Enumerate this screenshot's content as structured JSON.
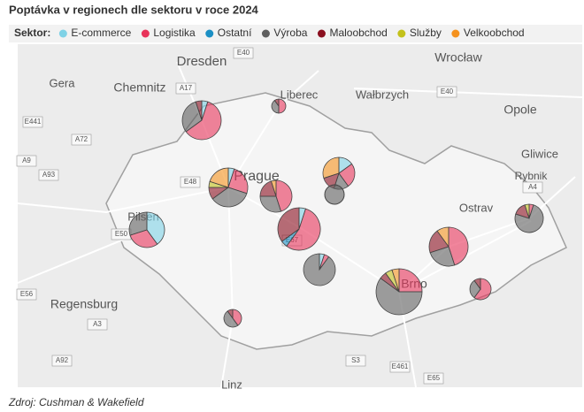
{
  "title": "Poptávka v regionech dle sektoru v roce 2024",
  "legend": {
    "label": "Sektor:",
    "items": [
      {
        "name": "E-commerce",
        "color": "#7fd2e6"
      },
      {
        "name": "Logistika",
        "color": "#e8335a"
      },
      {
        "name": "Ostatní",
        "color": "#1b8fc4"
      },
      {
        "name": "Výroba",
        "color": "#5f5f5f"
      },
      {
        "name": "Maloobchod",
        "color": "#8a0f1f"
      },
      {
        "name": "Služby",
        "color": "#c3c11a"
      },
      {
        "name": "Velkoobchod",
        "color": "#f5921e"
      }
    ]
  },
  "map_labels": [
    "Dresden",
    "Chemnitz",
    "Gera",
    "Liberec",
    "Wałbrzych",
    "Wrocław",
    "Opole",
    "Gliwice",
    "Rybnik",
    "Prague",
    "Pilsen",
    "Regensburg",
    "Ostrav",
    "Brno",
    "Linz"
  ],
  "road_labels": [
    "E40",
    "A17",
    "E441",
    "A72",
    "A9",
    "E48",
    "E50",
    "E56",
    "A93",
    "A3",
    "A92",
    "S3",
    "E461",
    "E65",
    "A4",
    "E40",
    "E67"
  ],
  "pies": [
    {
      "values": [
        5,
        60,
        0,
        30,
        5,
        0,
        0
      ]
    },
    {
      "values": [
        0,
        50,
        0,
        40,
        10,
        0,
        0
      ]
    },
    {
      "values": [
        5,
        25,
        0,
        35,
        10,
        5,
        20
      ]
    },
    {
      "values": [
        0,
        45,
        0,
        30,
        20,
        0,
        5
      ]
    },
    {
      "values": [
        15,
        25,
        0,
        15,
        15,
        0,
        30
      ]
    },
    {
      "values": [
        0,
        0,
        0,
        100,
        0,
        0,
        0
      ]
    },
    {
      "values": [
        40,
        30,
        0,
        30,
        0,
        0,
        0
      ]
    },
    {
      "values": [
        5,
        55,
        5,
        0,
        35,
        0,
        0
      ]
    },
    {
      "values": [
        5,
        5,
        0,
        90,
        0,
        0,
        0
      ]
    },
    {
      "values": [
        0,
        45,
        0,
        25,
        20,
        0,
        10
      ]
    },
    {
      "values": [
        0,
        5,
        0,
        75,
        15,
        5,
        0
      ]
    },
    {
      "values": [
        0,
        25,
        0,
        60,
        5,
        5,
        5
      ]
    },
    {
      "values": [
        0,
        60,
        0,
        30,
        10,
        0,
        0
      ]
    },
    {
      "values": [
        0,
        40,
        0,
        50,
        10,
        0,
        0
      ]
    }
  ],
  "source": "Zdroj: Cushman & Wakefield"
}
